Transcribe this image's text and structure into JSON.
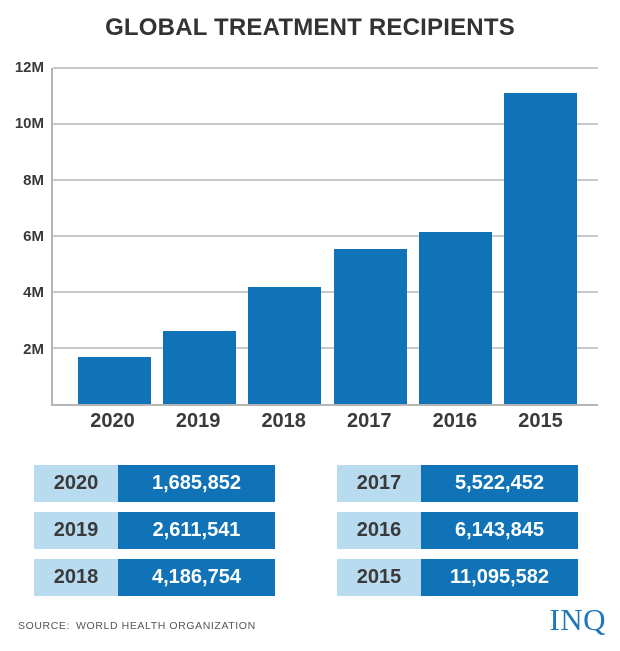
{
  "title": "GLOBAL TREATMENT RECIPIENTS",
  "chart_data": {
    "type": "bar",
    "title": "GLOBAL TREATMENT RECIPIENTS",
    "categories": [
      "2020",
      "2019",
      "2018",
      "2017",
      "2016",
      "2015"
    ],
    "values": [
      1685852,
      2611541,
      4186754,
      5522452,
      6143845,
      11095582
    ],
    "xlabel": "",
    "ylabel": "",
    "ylim": [
      0,
      12000000
    ],
    "grid": true,
    "legend": "none",
    "y_ticks": [
      {
        "label": "2M",
        "value": 2000000
      },
      {
        "label": "4M",
        "value": 4000000
      },
      {
        "label": "6M",
        "value": 6000000
      },
      {
        "label": "8M",
        "value": 8000000
      },
      {
        "label": "10M",
        "value": 10000000
      },
      {
        "label": "12M",
        "value": 12000000
      }
    ]
  },
  "tables": {
    "left": {
      "rows": [
        {
          "year": "2020",
          "value": "1,685,852"
        },
        {
          "year": "2019",
          "value": "2,611,541"
        },
        {
          "year": "2018",
          "value": "4,186,754"
        }
      ]
    },
    "right": {
      "rows": [
        {
          "year": "2017",
          "value": "5,522,452"
        },
        {
          "year": "2016",
          "value": "6,143,845"
        },
        {
          "year": "2015",
          "value": "11,095,582"
        }
      ]
    }
  },
  "footer": {
    "source_prefix": "SOURCE:",
    "source_value": "WORLD HEALTH ORGANIZATION",
    "logo_text": "INQ"
  },
  "colors": {
    "bar_blue": "#1173b7",
    "table_dark_blue": "#1173b7",
    "table_light_blue": "#b9dbf0",
    "gridline_gray": "#c9c9c9",
    "axis_gray": "#b5b5b5",
    "text_dark": "#333333",
    "logo_blue": "#1e78bb"
  }
}
